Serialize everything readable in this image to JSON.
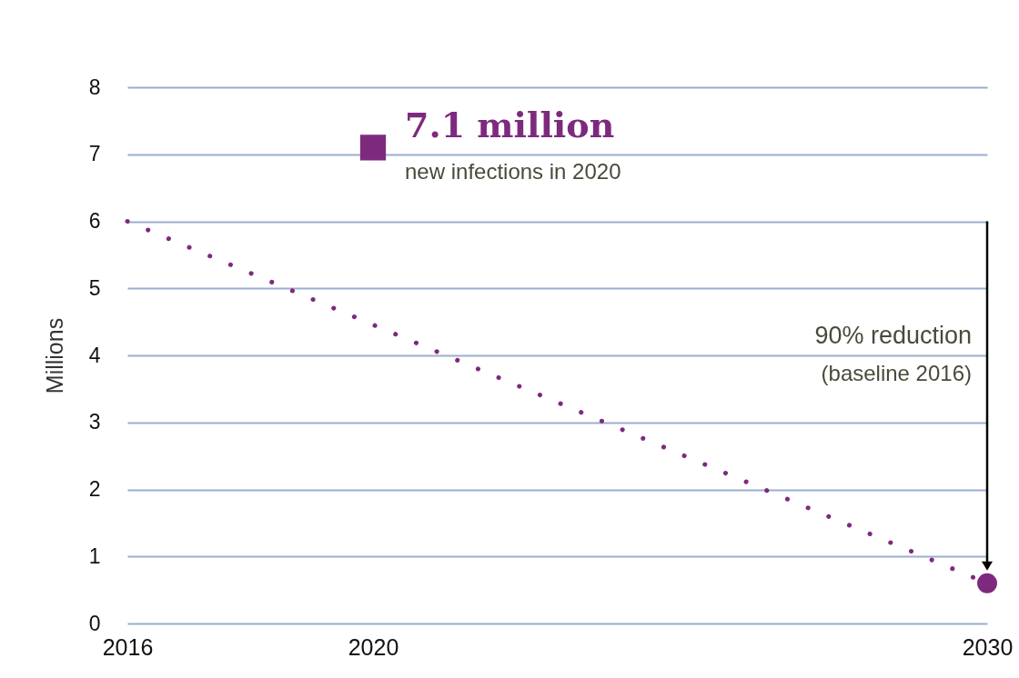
{
  "chart_data": {
    "type": "line",
    "ylabel": "Millions",
    "xlim": [
      2016,
      2030
    ],
    "xticks": [
      2016,
      2020,
      2030
    ],
    "ylim": [
      0,
      8
    ],
    "yticks": [
      0,
      1,
      2,
      3,
      4,
      5,
      6,
      7,
      8
    ],
    "grid": "y",
    "series": [
      {
        "color": "#7d2a7e",
        "line_style": "dotted",
        "x": [
          2016,
          2030
        ],
        "values": [
          6,
          0.6
        ]
      },
      {
        "type": "scatter",
        "color": "#7d2a7e",
        "marker": "square",
        "x": [
          2020
        ],
        "values": [
          7.1
        ]
      },
      {
        "type": "scatter",
        "color": "#7d2a7e",
        "marker": "circle",
        "x": [
          2030
        ],
        "values": [
          0.6
        ]
      }
    ],
    "annotations": [
      "7.1 million",
      "new infections in 2020",
      "90% reduction",
      "(baseline 2016)"
    ]
  }
}
